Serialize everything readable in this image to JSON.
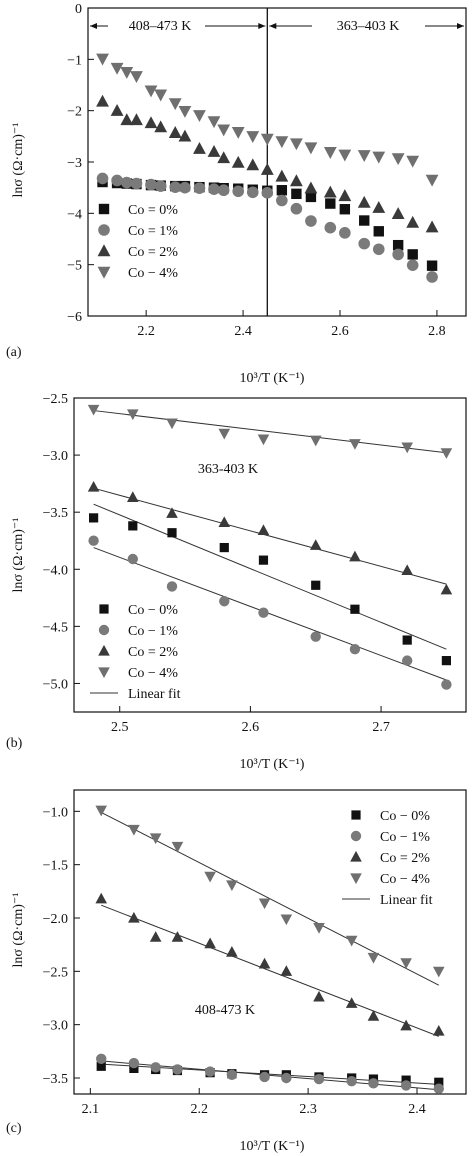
{
  "chart_data": [
    {
      "type": "scatter",
      "panel_label": "(a)",
      "xlabel": "10³/T  (K⁻¹)",
      "ylabel": "lnσ (Ω·cm)⁻¹",
      "xlim": [
        2.08,
        2.86
      ],
      "ylim": [
        -6,
        0
      ],
      "xticks": [
        2.2,
        2.4,
        2.6,
        2.8
      ],
      "yticks": [
        0,
        -1,
        -2,
        -3,
        -4,
        -5,
        -6
      ],
      "grid": false,
      "legend_position": "lower-left",
      "annotations": {
        "left_range": "408–473 K",
        "right_range": "363–403 K",
        "divider_x": 2.45
      },
      "series": [
        {
          "name": "Co = 0%",
          "marker": "square",
          "x": [
            2.11,
            2.14,
            2.16,
            2.18,
            2.21,
            2.23,
            2.26,
            2.28,
            2.31,
            2.34,
            2.36,
            2.39,
            2.42,
            2.45,
            2.48,
            2.51,
            2.54,
            2.58,
            2.61,
            2.65,
            2.68,
            2.72,
            2.75,
            2.79
          ],
          "y": [
            -3.39,
            -3.41,
            -3.42,
            -3.43,
            -3.45,
            -3.46,
            -3.47,
            -3.47,
            -3.49,
            -3.5,
            -3.51,
            -3.52,
            -3.54,
            -3.56,
            -3.55,
            -3.62,
            -3.68,
            -3.81,
            -3.92,
            -4.14,
            -4.35,
            -4.62,
            -4.8,
            -5.02
          ]
        },
        {
          "name": "Co = 1%",
          "marker": "circle",
          "x": [
            2.11,
            2.14,
            2.16,
            2.18,
            2.21,
            2.23,
            2.26,
            2.28,
            2.31,
            2.34,
            2.36,
            2.39,
            2.42,
            2.45,
            2.48,
            2.51,
            2.54,
            2.58,
            2.61,
            2.65,
            2.68,
            2.72,
            2.75,
            2.79
          ],
          "y": [
            -3.32,
            -3.36,
            -3.4,
            -3.42,
            -3.44,
            -3.47,
            -3.49,
            -3.5,
            -3.51,
            -3.53,
            -3.55,
            -3.57,
            -3.59,
            -3.6,
            -3.75,
            -3.91,
            -4.15,
            -4.28,
            -4.38,
            -4.59,
            -4.7,
            -4.8,
            -5.01,
            -5.24
          ]
        },
        {
          "name": "Co = 2%",
          "marker": "triangle-up",
          "x": [
            2.11,
            2.14,
            2.16,
            2.18,
            2.21,
            2.23,
            2.26,
            2.28,
            2.31,
            2.34,
            2.36,
            2.39,
            2.42,
            2.45,
            2.48,
            2.51,
            2.54,
            2.58,
            2.61,
            2.65,
            2.68,
            2.72,
            2.75,
            2.79
          ],
          "y": [
            -1.82,
            -2.0,
            -2.18,
            -2.18,
            -2.24,
            -2.32,
            -2.43,
            -2.5,
            -2.74,
            -2.8,
            -2.92,
            -3.01,
            -3.06,
            -3.15,
            -3.28,
            -3.37,
            -3.51,
            -3.59,
            -3.66,
            -3.79,
            -3.89,
            -4.01,
            -4.18,
            -4.27
          ]
        },
        {
          "name": "Co − 4%",
          "marker": "triangle-down",
          "x": [
            2.11,
            2.14,
            2.16,
            2.18,
            2.21,
            2.23,
            2.26,
            2.28,
            2.31,
            2.34,
            2.36,
            2.39,
            2.42,
            2.45,
            2.48,
            2.51,
            2.54,
            2.58,
            2.61,
            2.65,
            2.68,
            2.72,
            2.75,
            2.79
          ],
          "y": [
            -0.99,
            -1.17,
            -1.25,
            -1.33,
            -1.61,
            -1.69,
            -1.86,
            -2.01,
            -2.09,
            -2.21,
            -2.37,
            -2.42,
            -2.5,
            -2.55,
            -2.6,
            -2.64,
            -2.72,
            -2.81,
            -2.86,
            -2.87,
            -2.9,
            -2.93,
            -2.98,
            -3.35
          ]
        }
      ]
    },
    {
      "type": "scatter",
      "panel_label": "(b)",
      "xlabel": "10³/T  (K⁻¹)",
      "ylabel": "lnσ (Ω·cm)⁻¹",
      "xlim": [
        2.465,
        2.765
      ],
      "ylim": [
        -5.25,
        -2.5
      ],
      "xticks": [
        2.5,
        2.6,
        2.7
      ],
      "yticks": [
        -2.5,
        -3.0,
        -3.5,
        -4.0,
        -4.5,
        -5.0
      ],
      "grid": false,
      "legend_position": "lower-left",
      "annotations": {
        "range": "363-403 K"
      },
      "linear_fit_label": "Linear fit",
      "series": [
        {
          "name": "Co − 0%",
          "marker": "square",
          "x": [
            2.48,
            2.51,
            2.54,
            2.58,
            2.61,
            2.65,
            2.68,
            2.72,
            2.75
          ],
          "y": [
            -3.55,
            -3.62,
            -3.68,
            -3.81,
            -3.92,
            -4.14,
            -4.35,
            -4.62,
            -4.8
          ],
          "fit": [
            [
              2.48,
              -3.43
            ],
            [
              2.75,
              -4.7
            ]
          ]
        },
        {
          "name": "Co − 1%",
          "marker": "circle",
          "x": [
            2.48,
            2.51,
            2.54,
            2.58,
            2.61,
            2.65,
            2.68,
            2.72,
            2.75
          ],
          "y": [
            -3.75,
            -3.91,
            -4.15,
            -4.28,
            -4.38,
            -4.59,
            -4.7,
            -4.8,
            -5.01
          ],
          "fit": [
            [
              2.48,
              -3.81
            ],
            [
              2.75,
              -4.97
            ]
          ]
        },
        {
          "name": "Co = 2%",
          "marker": "triangle-up",
          "x": [
            2.48,
            2.51,
            2.54,
            2.58,
            2.61,
            2.65,
            2.68,
            2.72,
            2.75
          ],
          "y": [
            -3.28,
            -3.37,
            -3.51,
            -3.59,
            -3.66,
            -3.79,
            -3.89,
            -4.01,
            -4.18
          ],
          "fit": [
            [
              2.48,
              -3.29
            ],
            [
              2.75,
              -4.13
            ]
          ]
        },
        {
          "name": "Co − 4%",
          "marker": "triangle-down",
          "x": [
            2.48,
            2.51,
            2.54,
            2.58,
            2.61,
            2.65,
            2.68,
            2.72,
            2.75
          ],
          "y": [
            -2.6,
            -2.64,
            -2.72,
            -2.81,
            -2.86,
            -2.87,
            -2.9,
            -2.93,
            -2.98
          ],
          "fit": [
            [
              2.48,
              -2.61
            ],
            [
              2.75,
              -2.98
            ]
          ]
        }
      ]
    },
    {
      "type": "scatter",
      "panel_label": "(c)",
      "xlabel": "10³/T  (K⁻¹)",
      "ylabel": "lnσ (Ω·cm)⁻¹",
      "xlim": [
        2.085,
        2.445
      ],
      "ylim": [
        -3.65,
        -0.8
      ],
      "xticks": [
        2.1,
        2.2,
        2.3,
        2.4
      ],
      "yticks": [
        -1.0,
        -1.5,
        -2.0,
        -2.5,
        -3.0,
        -3.5
      ],
      "grid": false,
      "legend_position": "top-right",
      "annotations": {
        "range": "408-473 K"
      },
      "linear_fit_label": "Linear fit",
      "series": [
        {
          "name": "Co − 0%",
          "marker": "square",
          "x": [
            2.11,
            2.14,
            2.16,
            2.18,
            2.21,
            2.23,
            2.26,
            2.28,
            2.31,
            2.34,
            2.36,
            2.39,
            2.42
          ],
          "y": [
            -3.39,
            -3.41,
            -3.42,
            -3.43,
            -3.45,
            -3.46,
            -3.47,
            -3.47,
            -3.49,
            -3.5,
            -3.51,
            -3.52,
            -3.54
          ],
          "fit": [
            [
              2.11,
              -3.37
            ],
            [
              2.42,
              -3.56
            ]
          ]
        },
        {
          "name": "Co − 1%",
          "marker": "circle",
          "x": [
            2.11,
            2.14,
            2.16,
            2.18,
            2.21,
            2.23,
            2.26,
            2.28,
            2.31,
            2.34,
            2.36,
            2.39,
            2.42
          ],
          "y": [
            -3.32,
            -3.36,
            -3.4,
            -3.42,
            -3.44,
            -3.47,
            -3.49,
            -3.5,
            -3.51,
            -3.53,
            -3.55,
            -3.57,
            -3.6
          ],
          "fit": [
            [
              2.11,
              -3.34
            ],
            [
              2.42,
              -3.61
            ]
          ]
        },
        {
          "name": "Co = 2%",
          "marker": "triangle-up",
          "x": [
            2.11,
            2.14,
            2.16,
            2.18,
            2.21,
            2.23,
            2.26,
            2.28,
            2.31,
            2.34,
            2.36,
            2.39,
            2.42
          ],
          "y": [
            -1.82,
            -2.0,
            -2.18,
            -2.18,
            -2.24,
            -2.32,
            -2.43,
            -2.5,
            -2.74,
            -2.8,
            -2.92,
            -3.01,
            -3.06
          ],
          "fit": [
            [
              2.11,
              -1.88
            ],
            [
              2.42,
              -3.11
            ]
          ]
        },
        {
          "name": "Co − 4%",
          "marker": "triangle-down",
          "x": [
            2.11,
            2.14,
            2.16,
            2.18,
            2.21,
            2.23,
            2.26,
            2.28,
            2.31,
            2.34,
            2.36,
            2.39,
            2.42
          ],
          "y": [
            -0.99,
            -1.17,
            -1.25,
            -1.33,
            -1.61,
            -1.69,
            -1.86,
            -2.01,
            -2.09,
            -2.21,
            -2.37,
            -2.42,
            -2.5
          ],
          "fit": [
            [
              2.11,
              -1.01
            ],
            [
              2.42,
              -2.63
            ]
          ]
        }
      ]
    }
  ]
}
